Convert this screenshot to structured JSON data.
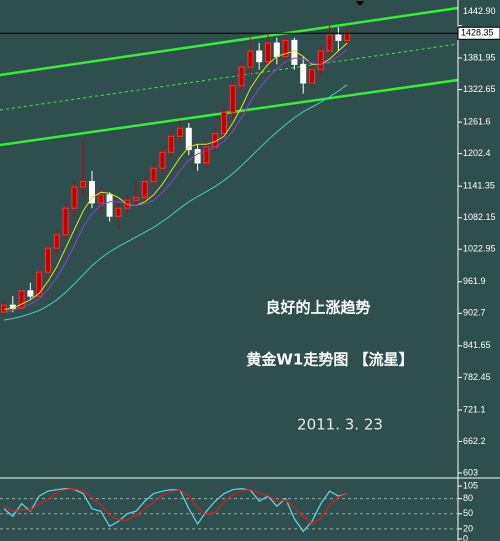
{
  "chart_data": [
    {
      "type": "candlestick",
      "annotations": [
        "良好的上涨趋势",
        "黄金W1走势图 【流星】",
        "2011. 3. 23"
      ],
      "open": [
        905,
        918,
        912,
        945,
        935,
        980,
        1025,
        1050,
        1100,
        1140,
        1150,
        1110,
        1125,
        1085,
        1100,
        1115,
        1120,
        1150,
        1175,
        1205,
        1235,
        1250,
        1210,
        1185,
        1215,
        1240,
        1280,
        1330,
        1365,
        1395,
        1375,
        1410,
        1385,
        1415,
        1370,
        1335,
        1360,
        1395,
        1425,
        1415
      ],
      "high": [
        925,
        935,
        950,
        960,
        985,
        1030,
        1060,
        1110,
        1150,
        1225,
        1170,
        1140,
        1130,
        1110,
        1125,
        1150,
        1160,
        1185,
        1215,
        1245,
        1265,
        1260,
        1220,
        1225,
        1250,
        1290,
        1340,
        1375,
        1420,
        1410,
        1425,
        1420,
        1425,
        1420,
        1385,
        1370,
        1405,
        1442.9,
        1440,
        1440
      ],
      "low": [
        895,
        905,
        908,
        930,
        930,
        975,
        1010,
        1040,
        1085,
        1120,
        1100,
        1090,
        1075,
        1060,
        1090,
        1105,
        1110,
        1140,
        1165,
        1195,
        1220,
        1200,
        1170,
        1175,
        1205,
        1235,
        1270,
        1320,
        1350,
        1360,
        1365,
        1370,
        1380,
        1360,
        1315,
        1325,
        1350,
        1385,
        1395,
        1405
      ],
      "close": [
        918,
        912,
        945,
        935,
        980,
        1025,
        1050,
        1100,
        1140,
        1150,
        1110,
        1125,
        1085,
        1100,
        1115,
        1120,
        1150,
        1175,
        1205,
        1235,
        1250,
        1210,
        1185,
        1215,
        1240,
        1280,
        1330,
        1365,
        1395,
        1375,
        1410,
        1385,
        1415,
        1370,
        1335,
        1360,
        1395,
        1425,
        1415,
        1428.35
      ],
      "up_color": "#c00000",
      "down_color": "#ffffff",
      "series": [
        {
          "color": "#e0e020",
          "values": [
            910,
            912,
            920,
            928,
            940,
            963,
            990,
            1025,
            1060,
            1095,
            1120,
            1130,
            1128,
            1120,
            1107,
            1105,
            1112,
            1125,
            1145,
            1170,
            1195,
            1215,
            1220,
            1220,
            1225,
            1235,
            1260,
            1290,
            1325,
            1350,
            1370,
            1385,
            1390,
            1395,
            1385,
            1370,
            1370,
            1380,
            1395,
            1410
          ]
        },
        {
          "color": "#9040c0",
          "values": [
            905,
            908,
            914,
            920,
            930,
            948,
            970,
            998,
            1030,
            1065,
            1090,
            1105,
            1112,
            1112,
            1108,
            1105,
            1108,
            1115,
            1130,
            1148,
            1170,
            1190,
            1202,
            1208,
            1215,
            1225,
            1245,
            1270,
            1300,
            1325,
            1345,
            1362,
            1375,
            1382,
            1380,
            1372,
            1370,
            1375,
            1385,
            1398
          ]
        },
        {
          "color": "#40d0b0",
          "values": [
            890,
            893,
            897,
            902,
            908,
            917,
            928,
            942,
            958,
            975,
            992,
            1006,
            1018,
            1028,
            1037,
            1046,
            1055,
            1064,
            1075,
            1087,
            1100,
            1112,
            1122,
            1131,
            1141,
            1152,
            1165,
            1180,
            1196,
            1212,
            1228,
            1243,
            1257,
            1270,
            1281,
            1290,
            1299,
            1309,
            1320,
            1332
          ]
        }
      ],
      "last_price": 1428.35,
      "ylim": [
        593.6,
        1490.8
      ],
      "yticks": [
        {
          "value": 1442.9,
          "label": "1442.90"
        },
        1381.95,
        1322.65,
        1261.6,
        1202.4,
        1141.35,
        1082.15,
        1022.95,
        961.9,
        902.7,
        841.65,
        782.45,
        721.1,
        662.2,
        603
      ]
    },
    {
      "type": "line",
      "series": [
        {
          "color": "#60d0e0",
          "values": [
            60,
            45,
            70,
            55,
            85,
            95,
            98,
            100,
            98,
            90,
            60,
            55,
            25,
            35,
            50,
            55,
            75,
            90,
            95,
            98,
            97,
            60,
            30,
            55,
            75,
            90,
            98,
            100,
            97,
            75,
            85,
            65,
            80,
            40,
            15,
            35,
            70,
            95,
            85,
            90
          ]
        },
        {
          "color": "#d02020",
          "values": [
            65,
            55,
            58,
            57,
            70,
            78,
            92,
            98,
            99,
            96,
            82,
            68,
            46,
            38,
            37,
            47,
            60,
            73,
            87,
            94,
            97,
            85,
            62,
            48,
            53,
            73,
            88,
            96,
            98,
            91,
            86,
            75,
            77,
            62,
            45,
            30,
            40,
            67,
            83,
            90
          ]
        }
      ],
      "levels": [
        80,
        50,
        20
      ],
      "ylim": [
        -4,
        121
      ],
      "yticks": [
        105,
        80,
        50,
        20,
        0
      ]
    }
  ]
}
